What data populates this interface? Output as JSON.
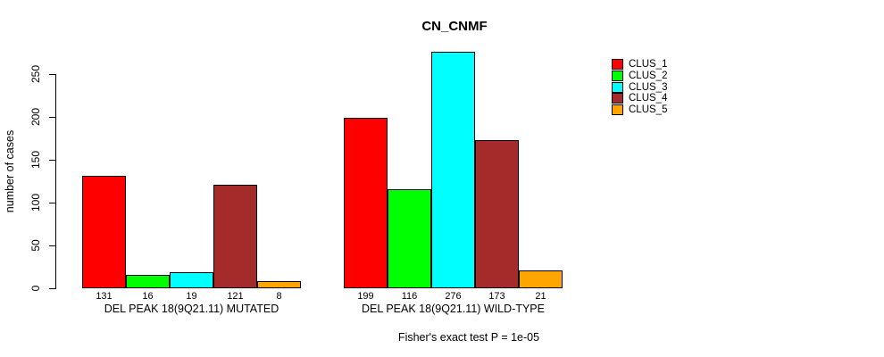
{
  "title": "CN_CNMF",
  "y_axis": {
    "label": "number of cases",
    "ticks": [
      0,
      50,
      100,
      150,
      200,
      250
    ]
  },
  "footer": "Fisher's exact test P = 1e-05",
  "legend": {
    "items": [
      {
        "label": "CLUS_1",
        "color": "#FF0000"
      },
      {
        "label": "CLUS_2",
        "color": "#00FF00"
      },
      {
        "label": "CLUS_3",
        "color": "#00FFFF"
      },
      {
        "label": "CLUS_4",
        "color": "#A52A2A"
      },
      {
        "label": "CLUS_5",
        "color": "#FFA500"
      }
    ]
  },
  "chart_data": {
    "type": "bar",
    "title": "CN_CNMF",
    "xlabel": "",
    "ylabel": "number of cases",
    "ylim": [
      0,
      250
    ],
    "yticks": [
      0,
      50,
      100,
      150,
      200,
      250
    ],
    "grid": false,
    "legend_position": "right",
    "bar_border_color": "#000000",
    "categories": [
      "DEL PEAK 18(9Q21.11) MUTATED",
      "DEL PEAK 18(9Q21.11) WILD-TYPE"
    ],
    "series": [
      {
        "name": "CLUS_1",
        "color": "#FF0000",
        "values": [
          131,
          199
        ]
      },
      {
        "name": "CLUS_2",
        "color": "#00FF00",
        "values": [
          16,
          116
        ]
      },
      {
        "name": "CLUS_3",
        "color": "#00FFFF",
        "values": [
          19,
          276
        ]
      },
      {
        "name": "CLUS_4",
        "color": "#A52A2A",
        "values": [
          121,
          173
        ]
      },
      {
        "name": "CLUS_5",
        "color": "#FFA500",
        "values": [
          8,
          21
        ]
      }
    ],
    "bar_value_labels_shown": true,
    "annotation": "Fisher's exact test P = 1e-05"
  }
}
